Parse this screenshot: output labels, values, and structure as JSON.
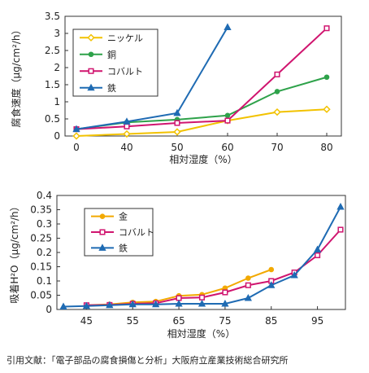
{
  "citation": "引用文献：「電子部品の腐食損傷と分析」大阪府立産業技術総合研究所",
  "chart_data": [
    {
      "type": "line",
      "xlabel": "相対湿度（%）",
      "ylabel": "腐食速度（μg/cm²/h）",
      "x_ticks": [
        0,
        40,
        50,
        60,
        70,
        80
      ],
      "y_ticks": [
        0,
        0.5,
        1,
        1.5,
        2,
        2.5,
        3,
        3.5
      ],
      "ylim": [
        0,
        3.5
      ],
      "grid": false,
      "legend_position": "top-left",
      "series": [
        {
          "name": "ニッケル",
          "color": "#f2c200",
          "marker": "diamond",
          "x": [
            0,
            40,
            50,
            60,
            70,
            80
          ],
          "y": [
            0.0,
            0.06,
            0.12,
            0.45,
            0.7,
            0.78
          ]
        },
        {
          "name": "銅",
          "color": "#2ea24a",
          "marker": "circle",
          "x": [
            0,
            40,
            50,
            60,
            70,
            80
          ],
          "y": [
            0.2,
            0.4,
            0.48,
            0.6,
            1.3,
            1.72
          ]
        },
        {
          "name": "コバルト",
          "color": "#d0156f",
          "marker": "square",
          "x": [
            0,
            40,
            50,
            60,
            70,
            80
          ],
          "y": [
            0.2,
            0.28,
            0.38,
            0.45,
            1.8,
            3.15
          ]
        },
        {
          "name": "鉄",
          "color": "#1f6bb3",
          "marker": "triangle",
          "x": [
            0,
            40,
            50,
            60
          ],
          "y": [
            0.2,
            0.42,
            0.67,
            3.18
          ]
        }
      ]
    },
    {
      "type": "line",
      "xlabel": "相対湿度（%）",
      "ylabel": "吸着H²O（μg/cm²/h）",
      "x_ticks": [
        45,
        55,
        65,
        75,
        85,
        95
      ],
      "y_ticks": [
        0,
        0.05,
        0.1,
        0.15,
        0.2,
        0.25,
        0.3,
        0.35,
        0.4
      ],
      "xlim": [
        40,
        100
      ],
      "ylim": [
        0,
        0.4
      ],
      "grid": false,
      "legend_position": "top-left",
      "series": [
        {
          "name": "金",
          "color": "#f2a900",
          "marker": "circle",
          "x": [
            45,
            50,
            55,
            60,
            65,
            70,
            75,
            80,
            85
          ],
          "y": [
            0.015,
            0.018,
            0.025,
            0.028,
            0.048,
            0.052,
            0.075,
            0.11,
            0.14
          ]
        },
        {
          "name": "コバルト",
          "color": "#d0156f",
          "marker": "square",
          "x": [
            45,
            50,
            55,
            60,
            65,
            70,
            75,
            80,
            85,
            90,
            95,
            100
          ],
          "y": [
            0.015,
            0.016,
            0.02,
            0.022,
            0.04,
            0.042,
            0.06,
            0.085,
            0.1,
            0.13,
            0.19,
            0.28
          ]
        },
        {
          "name": "鉄",
          "color": "#1f6bb3",
          "marker": "triangle",
          "x": [
            40,
            45,
            50,
            55,
            60,
            65,
            70,
            75,
            80,
            85,
            90,
            95,
            100
          ],
          "y": [
            0.01,
            0.012,
            0.015,
            0.018,
            0.018,
            0.02,
            0.02,
            0.02,
            0.04,
            0.085,
            0.12,
            0.21,
            0.36
          ]
        }
      ]
    }
  ]
}
